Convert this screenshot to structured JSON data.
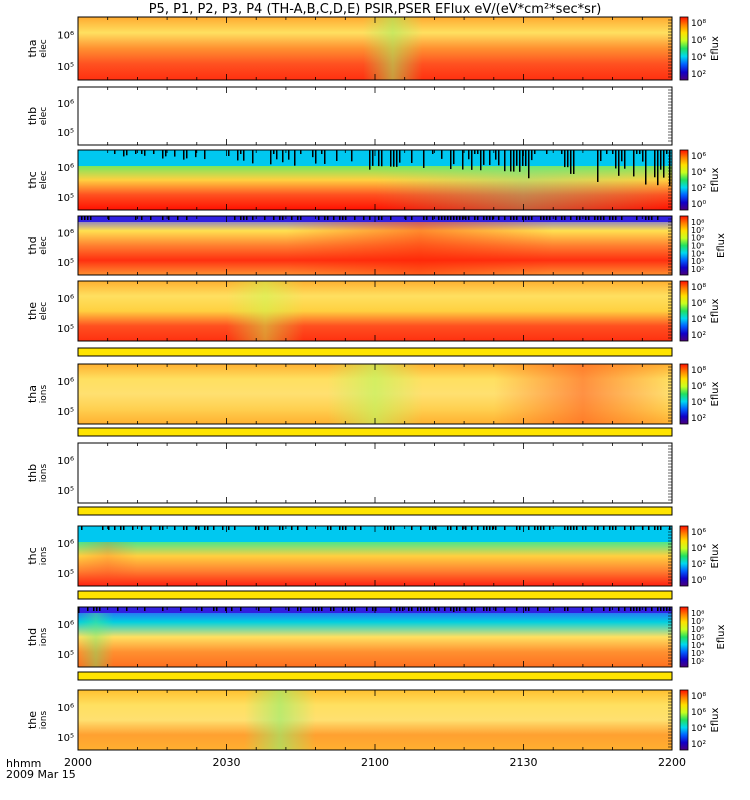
{
  "title": "P5, P1, P2, P3, P4 (TH-A,B,C,D,E) PSIR,PSER EFlux eV/(eV*cm²*sec*sr)",
  "footer": {
    "time_label": "hhmm",
    "date_label": "2009 Mar 15"
  },
  "x_ticks": [
    "2000",
    "2030",
    "2100",
    "2130",
    "2200"
  ],
  "chart_data": {
    "type": "heatmap",
    "title": "P5, P1, P2, P3, P4 (TH-A,B,C,D,E) PSIR,PSER EFlux eV/(eV*cm²*sec*sr)",
    "x_range": [
      "2000",
      "2200"
    ],
    "y_scale": "log",
    "colorbar_label": "Eflux",
    "panels": [
      {
        "name": "tha elec",
        "ylabel": [
          "tha",
          "elec"
        ],
        "yticks": [
          "10⁶",
          "10⁵"
        ],
        "has_data": true,
        "profile": "elecA",
        "colorbar_ticks": [
          "10⁸",
          "10⁶",
          "10⁴",
          "10²"
        ]
      },
      {
        "name": "thb elec",
        "ylabel": [
          "thb",
          "elec"
        ],
        "yticks": [
          "10⁶",
          "10⁵"
        ],
        "has_data": false
      },
      {
        "name": "thc elec",
        "ylabel": [
          "thc",
          "elec"
        ],
        "yticks": [
          "10⁶",
          "10⁵"
        ],
        "has_data": true,
        "profile": "elecC",
        "colorbar_ticks": [
          "10⁶",
          "10⁴",
          "10²",
          "10⁰"
        ]
      },
      {
        "name": "thd elec",
        "ylabel": [
          "thd",
          "elec"
        ],
        "yticks": [
          "10⁶",
          "10⁵"
        ],
        "has_data": true,
        "profile": "elecD",
        "colorbar_ticks": [
          "10⁸",
          "10⁷",
          "10⁶",
          "10⁵",
          "10⁴",
          "10³",
          "10²"
        ]
      },
      {
        "name": "the elec",
        "ylabel": [
          "the",
          "elec"
        ],
        "yticks": [
          "10⁶",
          "10⁵"
        ],
        "has_data": true,
        "profile": "elecE",
        "colorbar_ticks": [
          "10⁸",
          "10⁶",
          "10⁴",
          "10²"
        ]
      },
      {
        "name": "tha ions",
        "ylabel": [
          "tha",
          "ions"
        ],
        "yticks": [
          "10⁶",
          "10⁵"
        ],
        "has_data": true,
        "profile": "ionsA",
        "colorbar_ticks": [
          "10⁸",
          "10⁶",
          "10⁴",
          "10²"
        ]
      },
      {
        "name": "thb ions",
        "ylabel": [
          "thb",
          "ions"
        ],
        "yticks": [
          "10⁶",
          "10⁵"
        ],
        "has_data": false
      },
      {
        "name": "thc ions",
        "ylabel": [
          "thc",
          "ions"
        ],
        "yticks": [
          "10⁶",
          "10⁵"
        ],
        "has_data": true,
        "profile": "ionsC",
        "colorbar_ticks": [
          "10⁶",
          "10⁴",
          "10²",
          "10⁰"
        ]
      },
      {
        "name": "thd ions",
        "ylabel": [
          "thd",
          "ions"
        ],
        "yticks": [
          "10⁶",
          "10⁵"
        ],
        "has_data": true,
        "profile": "ionsD",
        "colorbar_ticks": [
          "10⁸",
          "10⁷",
          "10⁶",
          "10⁵",
          "10⁴",
          "10³",
          "10²"
        ]
      },
      {
        "name": "the ions",
        "ylabel": [
          "the",
          "ions"
        ],
        "yticks": [
          "10⁶",
          "10⁵"
        ],
        "has_data": true,
        "profile": "ionsE",
        "colorbar_ticks": [
          "10⁸",
          "10⁶",
          "10⁴",
          "10²"
        ]
      }
    ]
  }
}
